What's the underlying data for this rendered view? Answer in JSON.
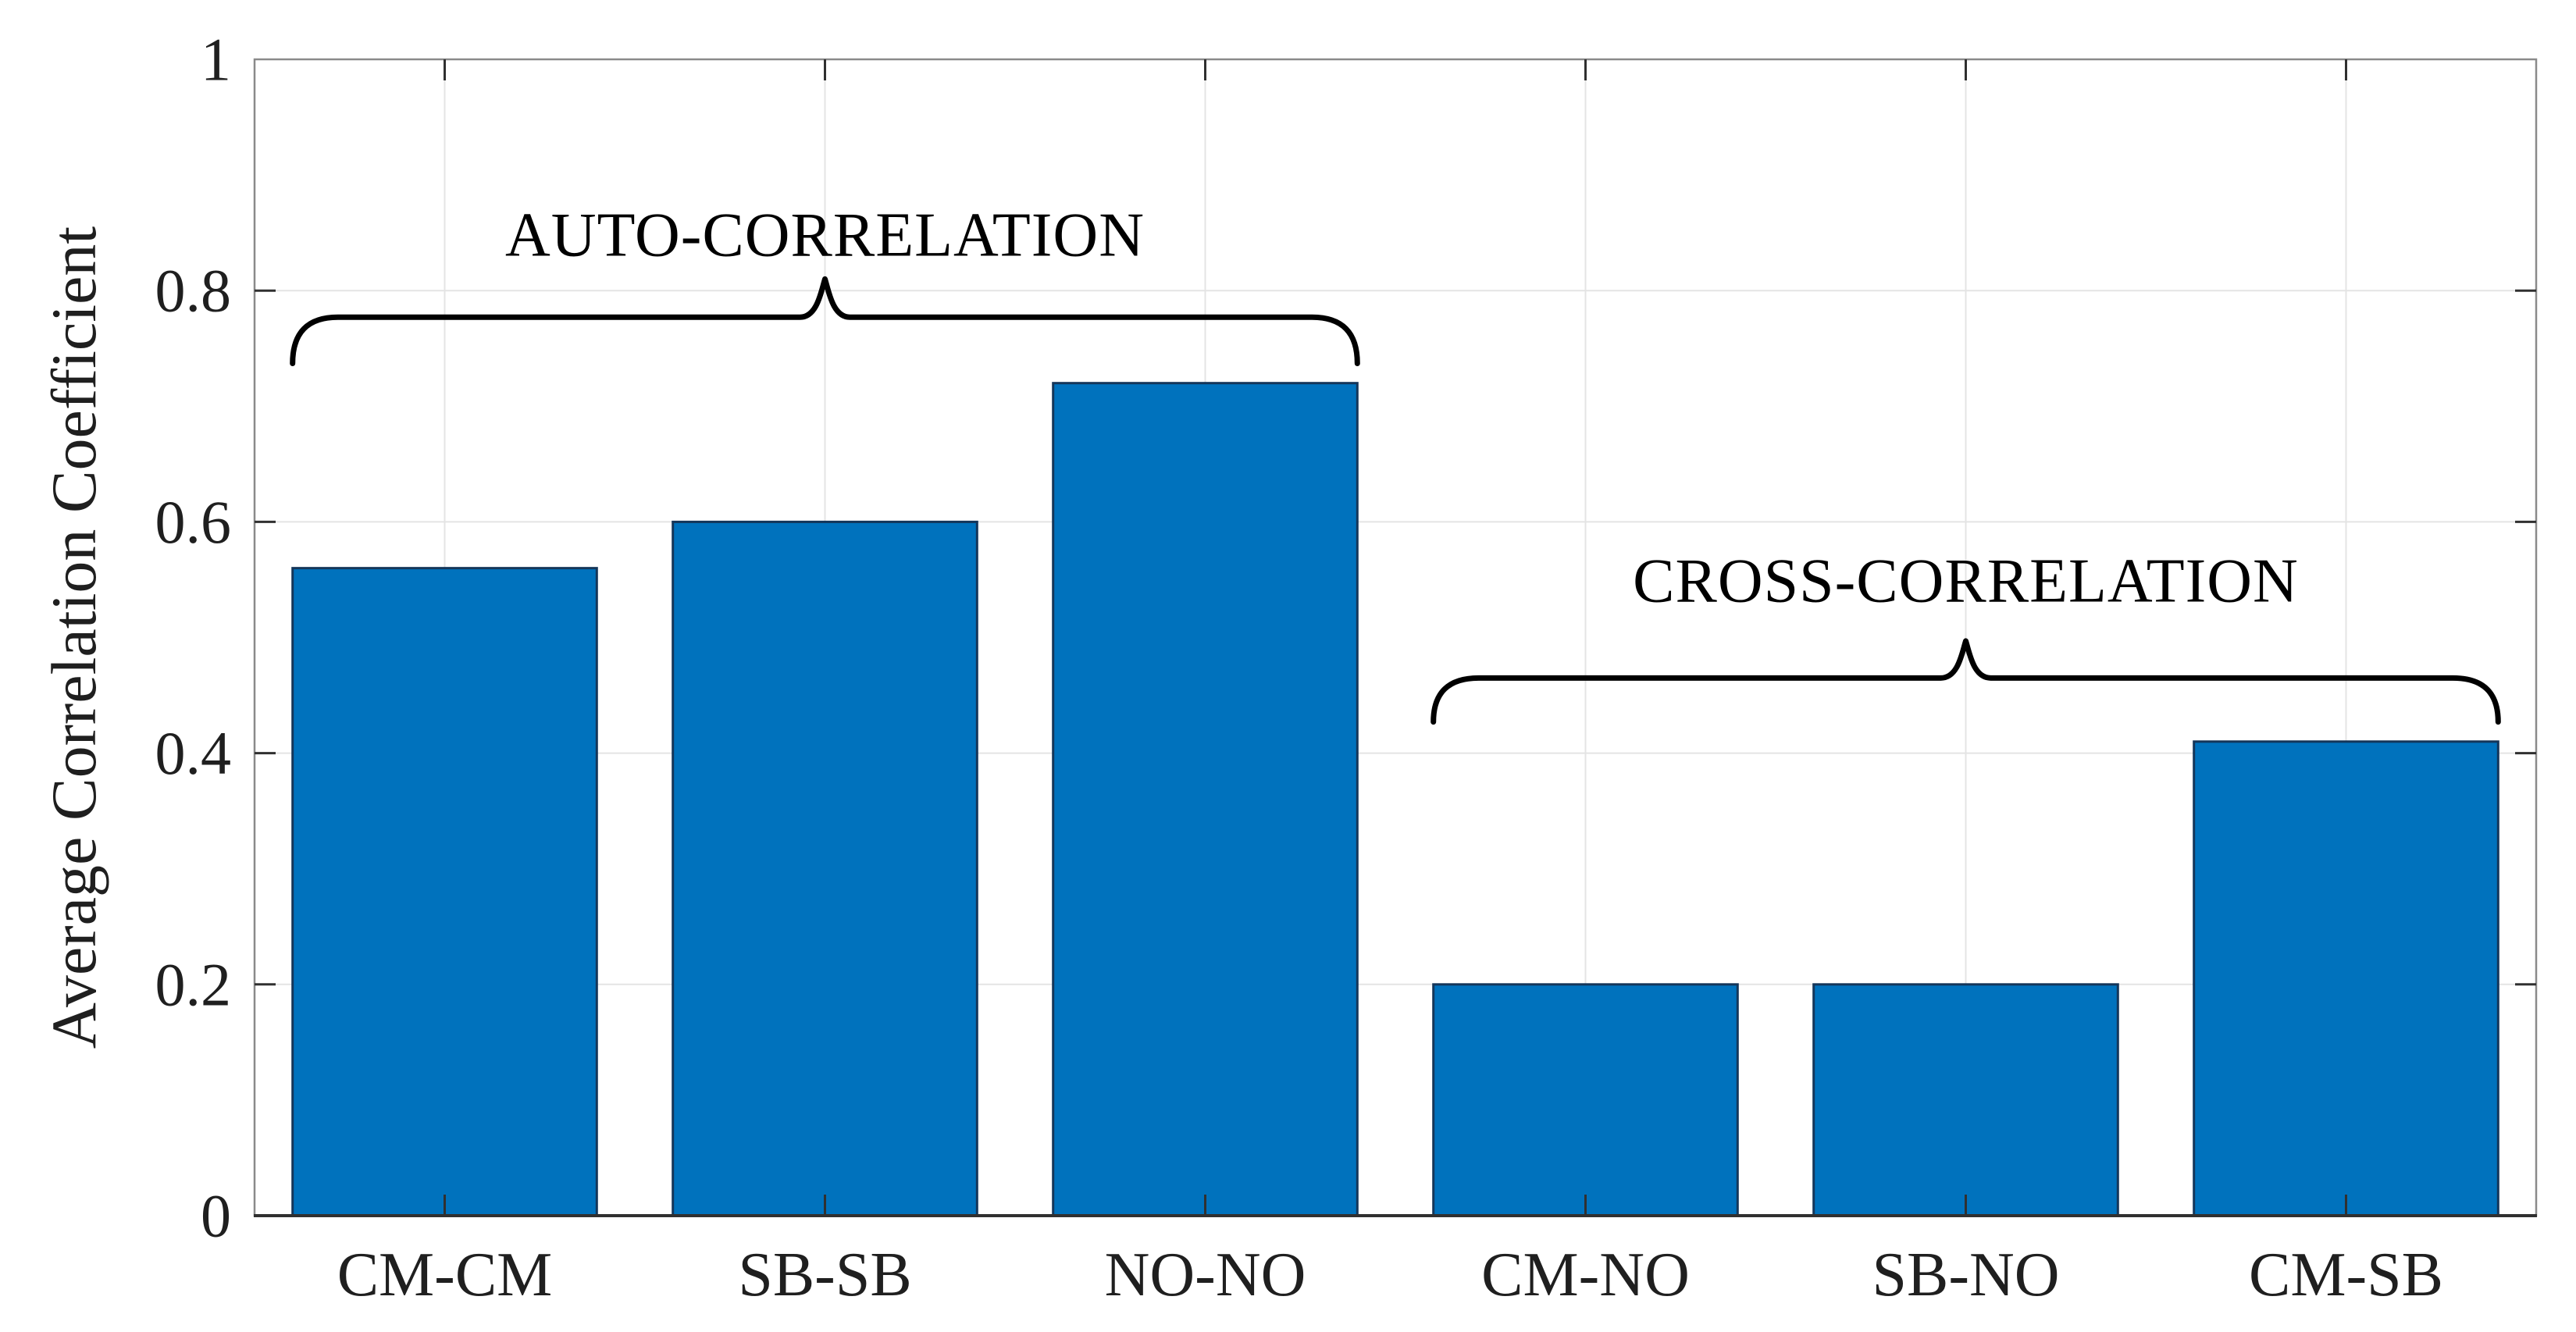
{
  "chart_data": {
    "type": "bar",
    "title": "",
    "categories": [
      "CM-CM",
      "SB-SB",
      "NO-NO",
      "CM-NO",
      "SB-NO",
      "CM-SB"
    ],
    "values": [
      0.56,
      0.6,
      0.72,
      0.2,
      0.2,
      0.41
    ],
    "xlabel": "",
    "ylabel": "Average Correlation Coefficient",
    "ylim": [
      0,
      1
    ],
    "yticks": [
      0,
      0.2,
      0.4,
      0.6,
      0.8,
      1
    ],
    "ytick_labels": [
      "0",
      "0.2",
      "0.4",
      "0.6",
      "0.8",
      "1"
    ],
    "grid": true,
    "legend": null,
    "bar_width_fraction": 0.8,
    "annotations": [
      {
        "label": "AUTO-CORRELATION",
        "from_category": "CM-CM",
        "to_category": "NO-NO",
        "brace_line_y": 0.777,
        "brace_peak_y": 0.81,
        "brace_end_y": 0.737,
        "label_y": 0.849
      },
      {
        "label": "CROSS-CORRELATION",
        "from_category": "CM-NO",
        "to_category": "CM-SB",
        "brace_line_y": 0.465,
        "brace_peak_y": 0.497,
        "brace_end_y": 0.427,
        "label_y": 0.55
      }
    ],
    "colors": {
      "bar_fill": "#0072BD",
      "bar_edge": "#14365A",
      "grid": "#E4E4E4",
      "frame": "#8A8A8A",
      "axis": "#303030",
      "tick_text": "#1F1F1F",
      "annotation": "#000000",
      "background": "#FFFFFF"
    }
  }
}
